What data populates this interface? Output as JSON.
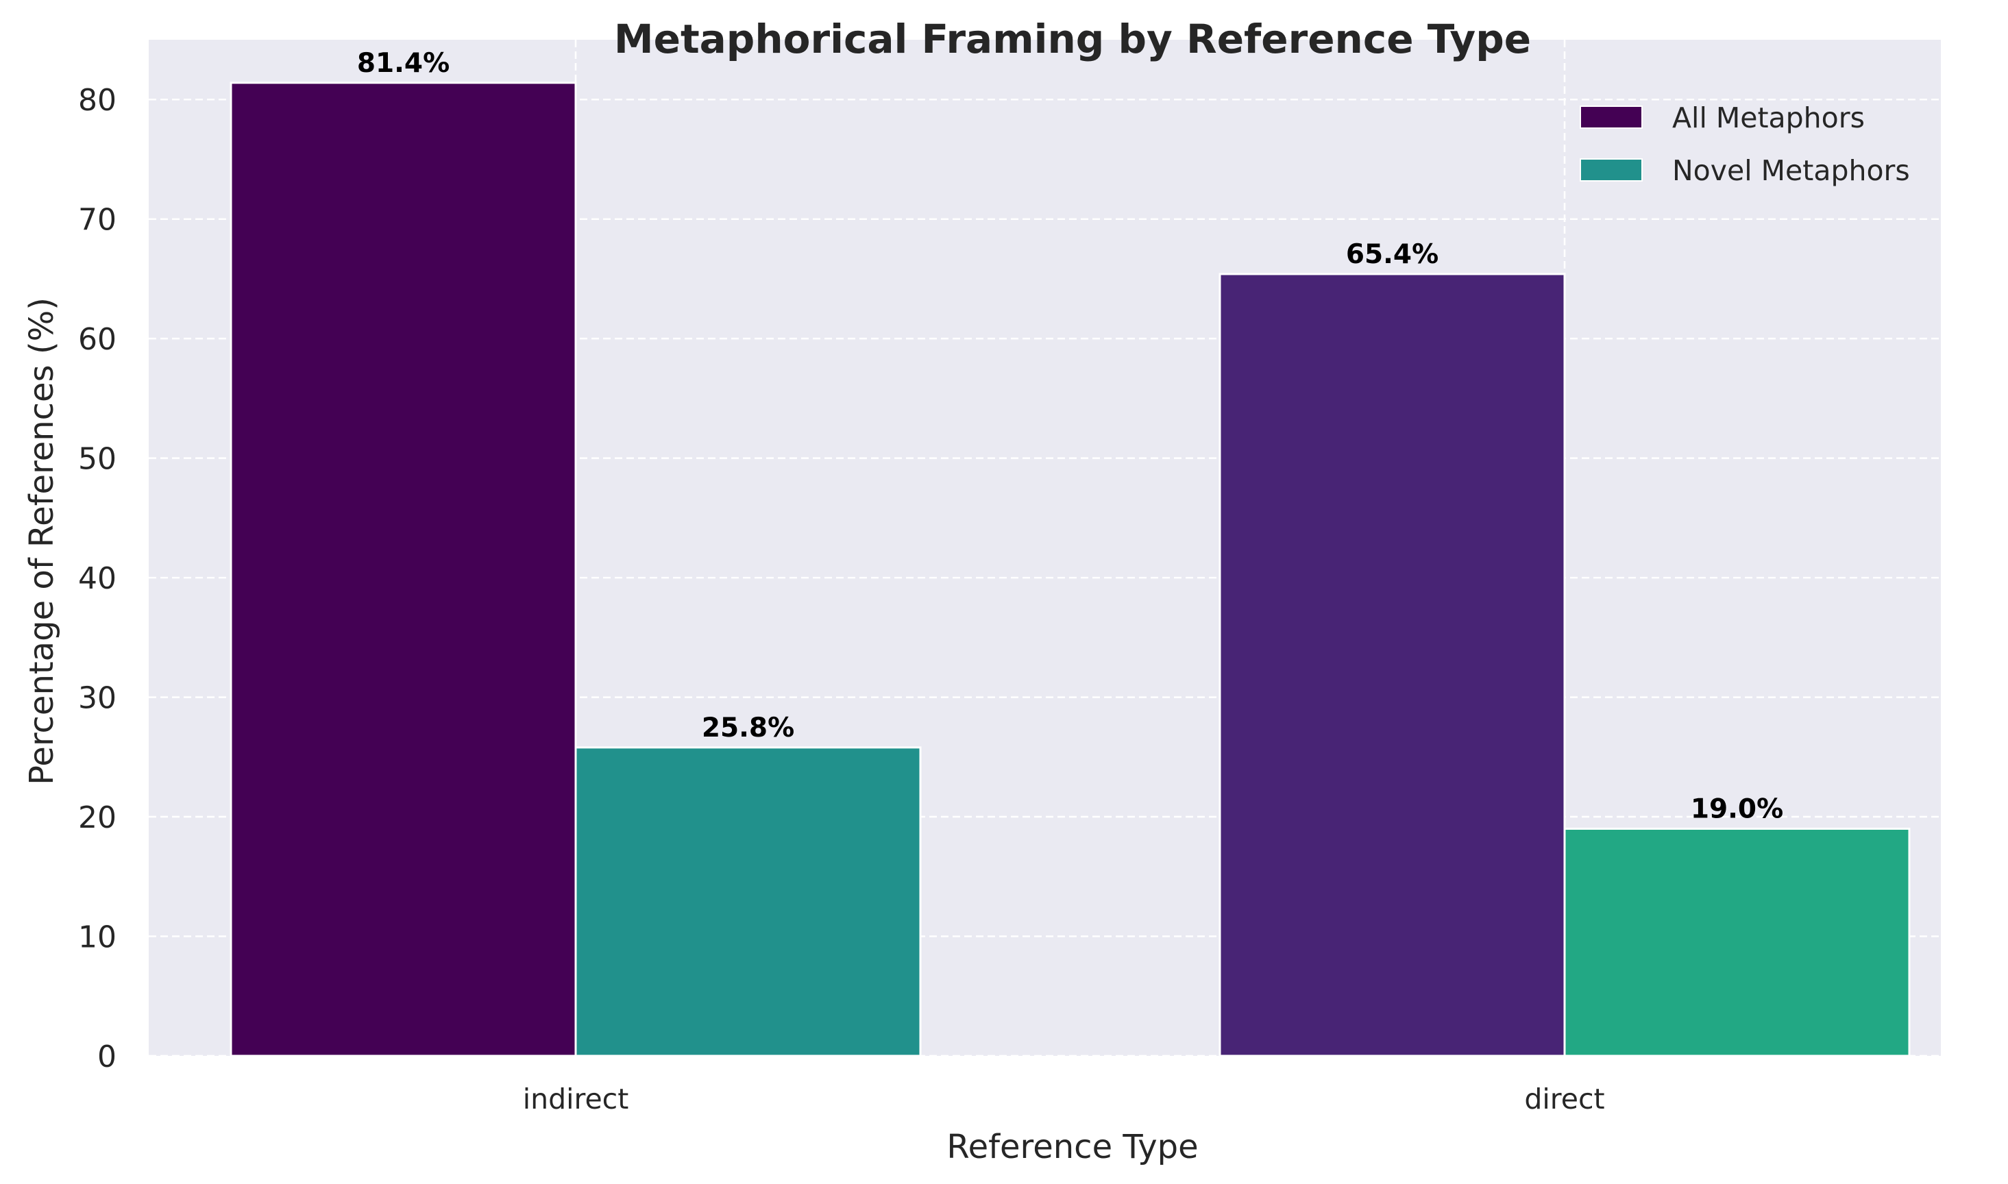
{
  "chart_data": {
    "type": "bar",
    "title": "Metaphorical Framing by Reference Type",
    "xlabel": "Reference Type",
    "ylabel": "Percentage of References (%)",
    "categories": [
      "indirect",
      "direct"
    ],
    "series": [
      {
        "name": "All Metaphors",
        "values": [
          81.4,
          65.4
        ],
        "labels": [
          "81.4%",
          "65.4%"
        ],
        "colors": [
          "#440154",
          "#482475"
        ]
      },
      {
        "name": "Novel Metaphors",
        "values": [
          25.8,
          19.0
        ],
        "labels": [
          "25.8%",
          "19.0%"
        ],
        "colors": [
          "#21918c",
          "#22a884"
        ]
      }
    ],
    "ylim": [
      0,
      85
    ],
    "yticks": [
      0,
      10,
      20,
      30,
      40,
      50,
      60,
      70,
      80
    ],
    "grid": true,
    "legend_position": "top-right",
    "background_color": "#eaeaf2",
    "legend_colors": [
      "#440154",
      "#21918c"
    ]
  }
}
